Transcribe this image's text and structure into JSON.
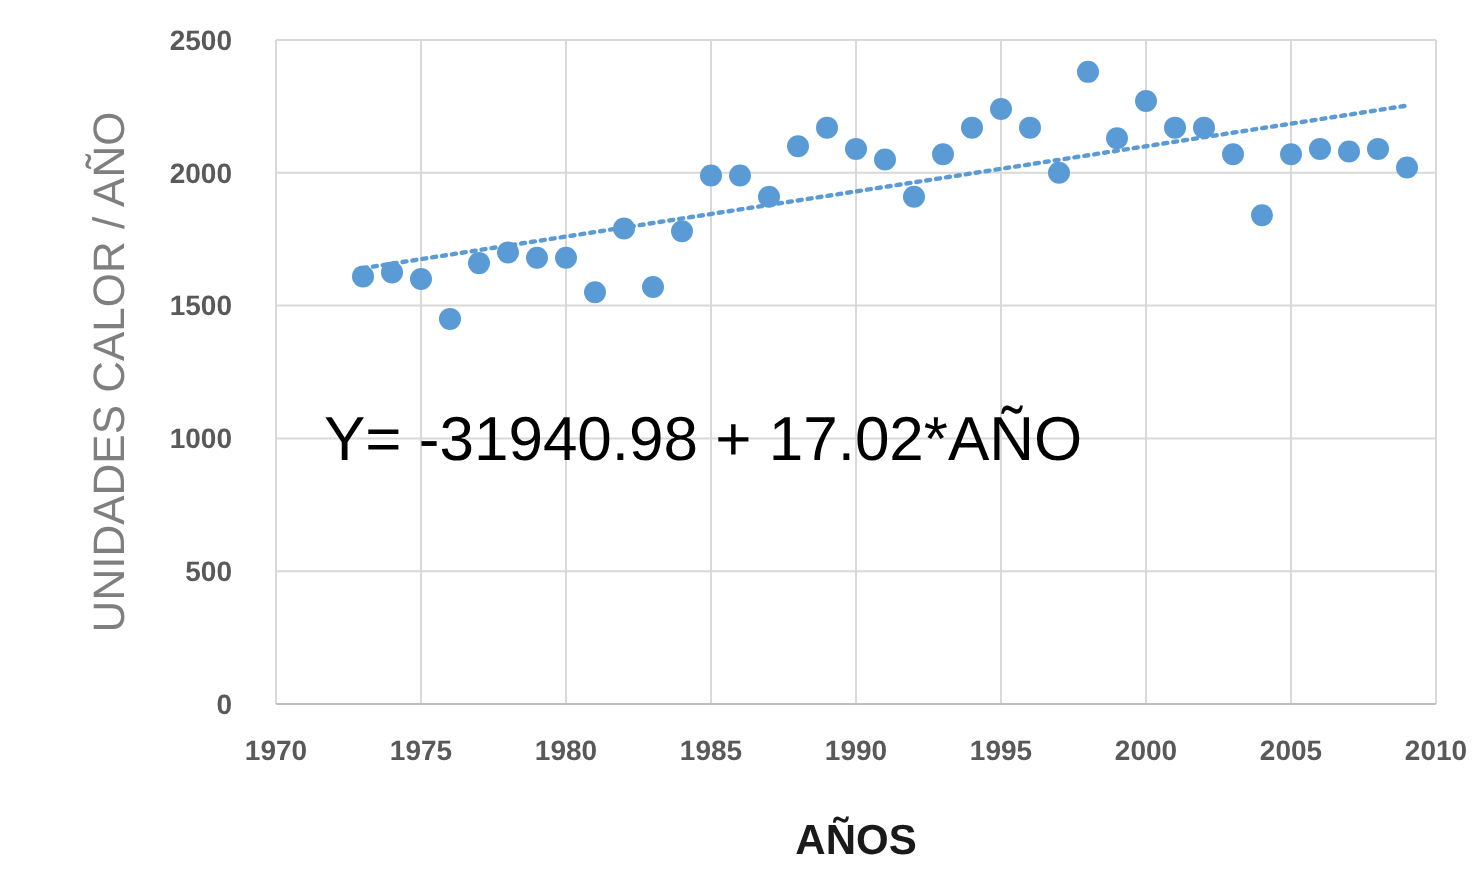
{
  "chart_data": {
    "type": "scatter",
    "xlabel": "AÑOS",
    "ylabel": "UNIDADES CALOR / AÑO",
    "xlim": [
      1970,
      2010
    ],
    "xticks": [
      1970,
      1975,
      1980,
      1985,
      1990,
      1995,
      2000,
      2005,
      2010
    ],
    "ylim": [
      0,
      2500
    ],
    "yticks": [
      0,
      500,
      1000,
      1500,
      2000,
      2500
    ],
    "grid": true,
    "annotations": [
      "Y= -31940.98 + 17.02*AÑO"
    ],
    "series": [
      {
        "marker": "circle",
        "color": "#5b9bd5",
        "x": [
          1973,
          1974,
          1975,
          1976,
          1977,
          1978,
          1979,
          1980,
          1981,
          1982,
          1983,
          1984,
          1985,
          1986,
          1987,
          1988,
          1989,
          1990,
          1991,
          1992,
          1993,
          1994,
          1995,
          1996,
          1997,
          1998,
          1999,
          2000,
          2001,
          2002,
          2003,
          2004,
          2005,
          2006,
          2007,
          2008,
          2009
        ],
        "values": [
          1610,
          1625,
          1600,
          1450,
          1660,
          1700,
          1680,
          1680,
          1550,
          1790,
          1570,
          1780,
          1990,
          1990,
          1910,
          2100,
          2170,
          2090,
          2050,
          1910,
          2070,
          2170,
          2240,
          2170,
          2000,
          2380,
          2130,
          2270,
          2170,
          2170,
          2070,
          1840,
          2070,
          2090,
          2080,
          2090,
          2020
        ]
      },
      {
        "type": "line",
        "marker": "none",
        "color": "#5b9bd5",
        "line_style": "dotted",
        "x": [
          1973,
          2009
        ],
        "values": [
          1641,
          2253
        ]
      }
    ]
  }
}
